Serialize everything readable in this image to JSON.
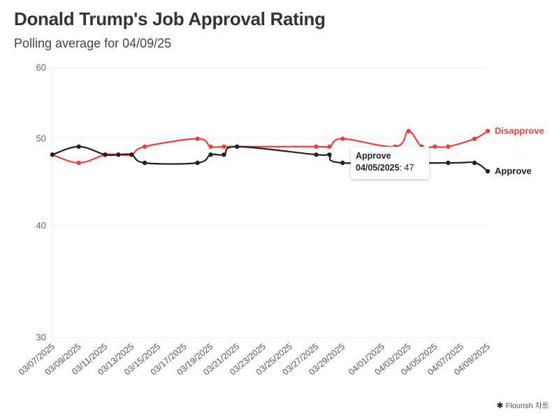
{
  "page": {
    "title": "Donald Trump's Job Approval Rating",
    "subtitle": "Polling average for 04/09/25"
  },
  "chart_data": {
    "type": "line",
    "title": "Donald Trump's Job Approval Rating",
    "subtitle": "Polling average for 04/09/25",
    "xlabel": "",
    "ylabel": "",
    "ylim": [
      30,
      60
    ],
    "y_ticks": [
      "60",
      "50",
      "40",
      "30"
    ],
    "x_tick_labels": [
      "03/07/2025",
      "03/09/2025",
      "03/11/2025",
      "03/13/2025",
      "03/15/2025",
      "03/17/2025",
      "03/19/2025",
      "03/21/2025",
      "03/23/2025",
      "03/25/2025",
      "03/27/2025",
      "03/29/2025",
      "04/01/2025",
      "04/03/2025",
      "04/05/2025",
      "04/07/2025",
      "04/09/2025"
    ],
    "series": [
      {
        "name": "Disapprove",
        "color": "#e8413a",
        "points": [
          [
            "03/07/2025",
            48
          ],
          [
            "03/09/2025",
            47
          ],
          [
            "03/11/2025",
            48
          ],
          [
            "03/12/2025",
            48
          ],
          [
            "03/13/2025",
            48
          ],
          [
            "03/14/2025",
            49
          ],
          [
            "03/18/2025",
            50
          ],
          [
            "03/19/2025",
            49
          ],
          [
            "03/20/2025",
            49
          ],
          [
            "03/21/2025",
            49
          ],
          [
            "03/27/2025",
            49
          ],
          [
            "03/28/2025",
            49
          ],
          [
            "03/29/2025",
            50
          ],
          [
            "04/02/2025",
            49
          ],
          [
            "04/03/2025",
            51
          ],
          [
            "04/04/2025",
            49
          ],
          [
            "04/05/2025",
            49
          ],
          [
            "04/06/2025",
            49
          ],
          [
            "04/08/2025",
            50
          ],
          [
            "04/09/2025",
            51
          ]
        ]
      },
      {
        "name": "Approve",
        "color": "#222222",
        "points": [
          [
            "03/07/2025",
            48
          ],
          [
            "03/09/2025",
            49
          ],
          [
            "03/11/2025",
            48
          ],
          [
            "03/12/2025",
            48
          ],
          [
            "03/13/2025",
            48
          ],
          [
            "03/14/2025",
            47
          ],
          [
            "03/18/2025",
            47
          ],
          [
            "03/19/2025",
            48
          ],
          [
            "03/20/2025",
            48
          ],
          [
            "03/21/2025",
            49
          ],
          [
            "03/27/2025",
            48
          ],
          [
            "03/28/2025",
            48
          ],
          [
            "03/29/2025",
            47
          ],
          [
            "04/06/2025",
            47
          ],
          [
            "04/08/2025",
            47
          ],
          [
            "04/09/2025",
            46
          ]
        ]
      }
    ],
    "tooltip": {
      "series": "Approve",
      "date": "04/05/2025",
      "value": "47"
    }
  },
  "credit": {
    "icon": "flourish-star-icon",
    "text": "Flourish 차트"
  }
}
